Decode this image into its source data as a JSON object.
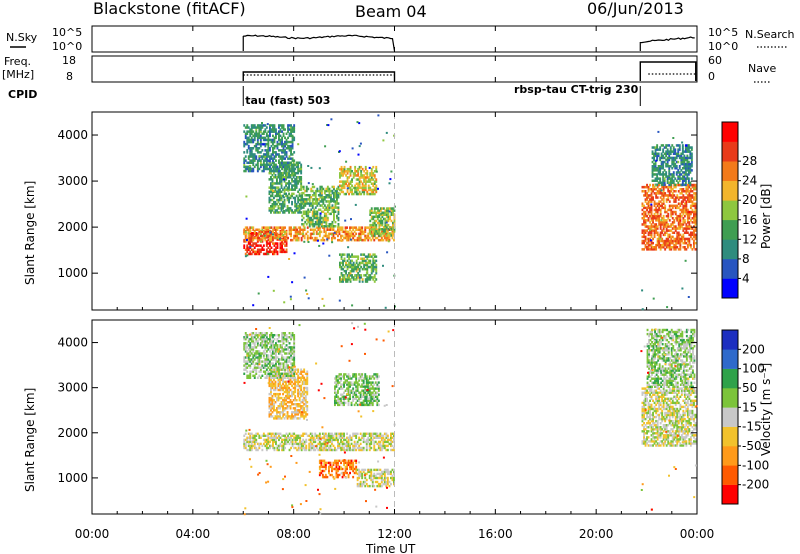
{
  "header": {
    "station": "Blackstone (fitACF)",
    "beam": "Beam 04",
    "date": "06/Jun/2013"
  },
  "strips": {
    "nsky": {
      "label": "N.Sky",
      "tick_top": "10^5",
      "tick_bottom": "10^0"
    },
    "freq": {
      "label_line1": "Freq.",
      "label_line2": "[MHz]",
      "tick_top": "18",
      "tick_bottom": "8"
    },
    "cpid": {
      "label": "CPID"
    },
    "nsearch": {
      "label": "N.Search",
      "tick_top": "10^5",
      "tick_bottom": "10^0"
    },
    "nave": {
      "label": "Nave",
      "tick_top": "60",
      "tick_bottom": "0"
    }
  },
  "cpid_segments": [
    {
      "label": "tau (fast) 503",
      "start_hour": 6.0
    },
    {
      "label": "rbsp-tau CT-trig 230",
      "start_hour": 21.75
    }
  ],
  "colors": {
    "power": [
      "#0000ff",
      "#2855c0",
      "#2f8c7e",
      "#3f9e52",
      "#8ec73f",
      "#f2b52c",
      "#f37a1a",
      "#e83a1a",
      "#ff0000"
    ],
    "velocity": [
      "#ff0000",
      "#ff5a00",
      "#ff9a1a",
      "#f2c22c",
      "#c8c8c8",
      "#7cc43a",
      "#2fa24a",
      "#2f6acb",
      "#1d2fc0"
    ],
    "marker_dash": "#bbbbbb"
  },
  "chart_data": [
    {
      "type": "heatmap",
      "name": "power",
      "ylabel": "Slant Range [km]",
      "y_ticks": [
        "1000",
        "2000",
        "3000",
        "4000"
      ],
      "ylim": [
        200,
        4500
      ],
      "xlim": [
        0,
        24
      ],
      "colorbar_label": "Power [dB]",
      "colorbar_ticks": [
        "4",
        "8",
        "12",
        "16",
        "20",
        "24",
        "28"
      ],
      "colorbar_range": [
        0,
        32
      ],
      "regions": [
        {
          "t": [
            6.0,
            7.7
          ],
          "r": [
            1400,
            1900
          ],
          "v": 28
        },
        {
          "t": [
            6.0,
            12.0
          ],
          "r": [
            1700,
            2000
          ],
          "v": 22
        },
        {
          "t": [
            7.0,
            8.3
          ],
          "r": [
            2300,
            3400
          ],
          "v": 12
        },
        {
          "t": [
            8.3,
            9.8
          ],
          "r": [
            2000,
            2900
          ],
          "v": 14
        },
        {
          "t": [
            9.8,
            11.3
          ],
          "r": [
            2700,
            3300
          ],
          "v": 18
        },
        {
          "t": [
            11.0,
            12.0
          ],
          "r": [
            1800,
            2400
          ],
          "v": 16
        },
        {
          "t": [
            9.8,
            11.3
          ],
          "r": [
            800,
            1400
          ],
          "v": 14
        },
        {
          "t": [
            6.0,
            8.0
          ],
          "r": [
            3200,
            4200
          ],
          "v": 10
        },
        {
          "t": [
            21.8,
            23.9
          ],
          "r": [
            1500,
            2900
          ],
          "v": 24
        },
        {
          "t": [
            22.2,
            23.8
          ],
          "r": [
            2900,
            3800
          ],
          "v": 10
        }
      ]
    },
    {
      "type": "heatmap",
      "name": "velocity",
      "ylabel": "Slant Range [km]",
      "y_ticks": [
        "1000",
        "2000",
        "3000",
        "4000"
      ],
      "ylim": [
        200,
        4500
      ],
      "xlim": [
        0,
        24
      ],
      "x_ticks": [
        "00:00",
        "04:00",
        "08:00",
        "12:00",
        "16:00",
        "20:00",
        "00:00"
      ],
      "xlabel": "Time UT",
      "colorbar_label": "Velocity [m s⁻¹]",
      "colorbar_ticks": [
        "-200",
        "-100",
        "-50",
        "-15",
        "15",
        "50",
        "100",
        "200"
      ],
      "colorbar_range": [
        -250,
        250
      ],
      "regions": [
        {
          "t": [
            6.0,
            12.0
          ],
          "r": [
            1600,
            2000
          ],
          "v": 0
        },
        {
          "t": [
            7.0,
            8.5
          ],
          "r": [
            2300,
            3400
          ],
          "v": -60
        },
        {
          "t": [
            9.0,
            10.5
          ],
          "r": [
            1000,
            1400
          ],
          "v": -140
        },
        {
          "t": [
            9.6,
            11.4
          ],
          "r": [
            2600,
            3300
          ],
          "v": 60
        },
        {
          "t": [
            6.0,
            8.0
          ],
          "r": [
            3200,
            4200
          ],
          "v": 40
        },
        {
          "t": [
            10.5,
            12.0
          ],
          "r": [
            800,
            1200
          ],
          "v": 0
        },
        {
          "t": [
            21.8,
            23.9
          ],
          "r": [
            1700,
            3000
          ],
          "v": 0
        },
        {
          "t": [
            22.0,
            23.9
          ],
          "r": [
            3000,
            4300
          ],
          "v": 40
        }
      ]
    }
  ]
}
